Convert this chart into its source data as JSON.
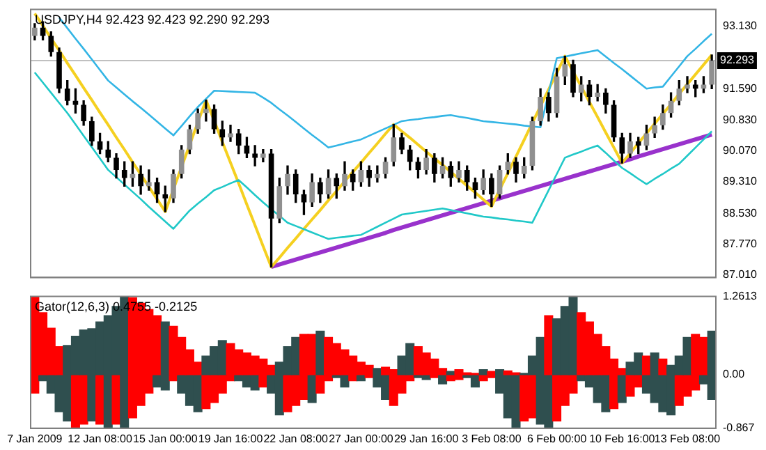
{
  "chart_data": [
    {
      "type": "candlestick",
      "title": "USDJPY,H4 92.423 92.423 92.290 92.293",
      "tick_labels": "y",
      "grid": false,
      "categories": [
        null,
        null,
        null,
        null,
        null,
        null,
        null,
        null,
        null,
        null,
        null,
        null,
        null,
        null,
        null,
        null,
        null,
        null,
        null,
        null,
        null,
        null,
        null,
        null,
        null,
        null,
        null,
        null,
        null,
        null,
        null,
        null,
        null,
        null,
        null,
        null,
        null,
        null,
        null,
        null,
        null,
        null,
        null,
        null,
        null,
        null,
        null,
        null,
        null,
        null,
        null,
        null,
        null,
        null,
        null,
        null,
        null,
        null,
        null,
        null,
        null,
        null,
        null,
        null,
        null,
        null,
        null,
        null,
        null,
        null,
        null,
        null,
        null,
        null,
        null,
        null,
        null,
        null,
        null,
        null,
        null,
        null,
        null,
        null
      ],
      "ohlc": [
        [
          92.9,
          93.2,
          92.8,
          93.1
        ],
        [
          93.1,
          93.25,
          92.8,
          92.9
        ],
        [
          92.9,
          93.0,
          92.4,
          92.5
        ],
        [
          92.5,
          92.6,
          91.5,
          91.6
        ],
        [
          91.6,
          91.8,
          91.2,
          91.3
        ],
        [
          91.3,
          91.6,
          91.0,
          91.2
        ],
        [
          91.2,
          91.3,
          90.7,
          90.8
        ],
        [
          90.8,
          90.9,
          90.2,
          90.3
        ],
        [
          90.3,
          90.5,
          90.0,
          90.1
        ],
        [
          90.1,
          90.3,
          89.8,
          89.9
        ],
        [
          89.9,
          90.0,
          89.4,
          89.6
        ],
        [
          89.6,
          89.8,
          89.2,
          89.4
        ],
        [
          89.4,
          89.8,
          89.2,
          89.5
        ],
        [
          89.5,
          89.7,
          89.0,
          89.2
        ],
        [
          89.2,
          89.6,
          89.1,
          89.3
        ],
        [
          89.3,
          89.4,
          88.8,
          89.0
        ],
        [
          89.0,
          89.2,
          88.57,
          88.9
        ],
        [
          88.9,
          89.6,
          88.8,
          89.5
        ],
        [
          89.5,
          90.2,
          89.4,
          90.1
        ],
        [
          90.1,
          90.7,
          90.0,
          90.6
        ],
        [
          90.6,
          91.1,
          90.5,
          91.0
        ],
        [
          91.0,
          91.32,
          90.8,
          91.1
        ],
        [
          91.1,
          91.2,
          90.5,
          90.6
        ],
        [
          90.6,
          90.8,
          90.2,
          90.4
        ],
        [
          90.4,
          90.7,
          90.3,
          90.5
        ],
        [
          90.5,
          90.6,
          90.0,
          90.2
        ],
        [
          90.2,
          90.4,
          89.9,
          90.0
        ],
        [
          90.0,
          90.2,
          89.7,
          89.9
        ],
        [
          89.9,
          90.1,
          89.8,
          90.0
        ],
        [
          90.0,
          90.1,
          87.21,
          88.4
        ],
        [
          88.4,
          89.4,
          88.3,
          89.2
        ],
        [
          89.2,
          89.7,
          89.0,
          89.5
        ],
        [
          89.5,
          89.6,
          88.8,
          89.0
        ],
        [
          89.0,
          89.1,
          88.5,
          88.8
        ],
        [
          88.8,
          89.5,
          88.7,
          89.3
        ],
        [
          89.3,
          89.4,
          88.8,
          89.0
        ],
        [
          89.0,
          89.6,
          88.9,
          89.4
        ],
        [
          89.4,
          89.5,
          88.9,
          89.2
        ],
        [
          89.2,
          89.8,
          89.1,
          89.5
        ],
        [
          89.5,
          89.6,
          89.1,
          89.3
        ],
        [
          89.3,
          89.8,
          89.2,
          89.6
        ],
        [
          89.6,
          89.7,
          89.2,
          89.4
        ],
        [
          89.4,
          89.7,
          89.3,
          89.5
        ],
        [
          89.5,
          89.9,
          89.4,
          89.8
        ],
        [
          89.8,
          90.72,
          89.7,
          90.4
        ],
        [
          90.4,
          90.5,
          90.0,
          90.1
        ],
        [
          90.1,
          90.2,
          89.6,
          89.8
        ],
        [
          89.8,
          89.9,
          89.4,
          89.6
        ],
        [
          89.6,
          90.1,
          89.5,
          89.9
        ],
        [
          89.9,
          90.0,
          89.3,
          89.5
        ],
        [
          89.5,
          89.9,
          89.4,
          89.7
        ],
        [
          89.7,
          89.8,
          89.2,
          89.4
        ],
        [
          89.4,
          89.8,
          89.3,
          89.6
        ],
        [
          89.6,
          89.7,
          89.1,
          89.3
        ],
        [
          89.3,
          89.4,
          88.9,
          89.1
        ],
        [
          89.1,
          89.6,
          89.0,
          89.4
        ],
        [
          89.4,
          89.5,
          88.7,
          89.0
        ],
        [
          89.0,
          89.7,
          88.9,
          89.6
        ],
        [
          89.6,
          90.0,
          89.5,
          89.8
        ],
        [
          89.8,
          89.9,
          89.3,
          89.5
        ],
        [
          89.5,
          89.9,
          89.4,
          89.7
        ],
        [
          89.7,
          90.9,
          89.6,
          90.8
        ],
        [
          90.8,
          91.6,
          90.7,
          91.4
        ],
        [
          91.4,
          91.5,
          90.8,
          91.0
        ],
        [
          91.0,
          92.1,
          90.9,
          91.9
        ],
        [
          91.9,
          92.4,
          91.7,
          92.2
        ],
        [
          92.2,
          92.3,
          91.4,
          91.5
        ],
        [
          91.5,
          91.9,
          91.3,
          91.7
        ],
        [
          91.7,
          91.8,
          91.2,
          91.4
        ],
        [
          91.4,
          91.7,
          91.3,
          91.5
        ],
        [
          91.5,
          91.6,
          91.0,
          91.2
        ],
        [
          91.2,
          91.3,
          90.3,
          90.4
        ],
        [
          90.4,
          90.5,
          89.77,
          90.0
        ],
        [
          90.0,
          90.5,
          89.9,
          90.3
        ],
        [
          90.3,
          90.4,
          90.0,
          90.2
        ],
        [
          90.2,
          90.7,
          90.1,
          90.5
        ],
        [
          90.5,
          90.9,
          90.4,
          90.7
        ],
        [
          90.7,
          91.2,
          90.6,
          91.0
        ],
        [
          91.0,
          91.5,
          90.9,
          91.3
        ],
        [
          91.3,
          91.8,
          91.2,
          91.6
        ],
        [
          91.6,
          91.9,
          91.5,
          91.7
        ],
        [
          91.7,
          91.8,
          91.4,
          91.6
        ],
        [
          91.6,
          91.9,
          91.5,
          91.7
        ],
        [
          91.7,
          92.43,
          91.6,
          92.293
        ]
      ],
      "colors": [
        "#909090",
        "#000000",
        "#000000",
        "#000000",
        "#000000",
        "#000000",
        "#000000",
        "#000000",
        "#000000",
        "#000000",
        "#000000",
        "#000000",
        "#909090",
        "#000000",
        "#909090",
        "#000000",
        "#000000",
        "#909090",
        "#909090",
        "#909090",
        "#909090",
        "#909090",
        "#000000",
        "#000000",
        "#909090",
        "#000000",
        "#000000",
        "#000000",
        "#909090",
        "#000000",
        "#909090",
        "#909090",
        "#000000",
        "#000000",
        "#909090",
        "#000000",
        "#909090",
        "#000000",
        "#909090",
        "#000000",
        "#909090",
        "#000000",
        "#909090",
        "#909090",
        "#909090",
        "#000000",
        "#000000",
        "#000000",
        "#909090",
        "#000000",
        "#909090",
        "#000000",
        "#909090",
        "#000000",
        "#000000",
        "#909090",
        "#000000",
        "#909090",
        "#909090",
        "#000000",
        "#909090",
        "#909090",
        "#909090",
        "#000000",
        "#909090",
        "#909090",
        "#000000",
        "#909090",
        "#000000",
        "#909090",
        "#000000",
        "#000000",
        "#000000",
        "#909090",
        "#000000",
        "#909090",
        "#909090",
        "#909090",
        "#909090",
        "#909090",
        "#909090",
        "#000000",
        "#909090",
        "#909090"
      ],
      "series": [
        {
          "type": "line",
          "color": "#33b5e5",
          "values": [
            null,
            null,
            null,
            93.35,
            93.09,
            92.83,
            92.58,
            92.32,
            92.06,
            91.8,
            91.63,
            91.46,
            91.29,
            91.13,
            90.96,
            90.79,
            90.62,
            90.45,
            90.68,
            90.92,
            91.15,
            91.35,
            91.55,
            91.54,
            91.53,
            91.52,
            91.51,
            91.5,
            91.38,
            91.25,
            91.09,
            90.94,
            90.78,
            90.62,
            90.46,
            90.31,
            90.15,
            90.2,
            90.25,
            90.3,
            90.35,
            90.44,
            90.53,
            90.62,
            90.71,
            90.8,
            90.83,
            90.85,
            90.88,
            90.9,
            90.93,
            90.95,
            90.91,
            90.88,
            90.84,
            90.8,
            90.78,
            90.76,
            90.74,
            90.72,
            90.69,
            90.67,
            90.65,
            91.5,
            92.35,
            92.39,
            92.43,
            92.47,
            92.51,
            92.55,
            92.39,
            92.23,
            92.08,
            91.92,
            91.76,
            91.6,
            91.63,
            91.65,
            91.9,
            92.15,
            92.4,
            92.58,
            92.77,
            92.95
          ]
        },
        {
          "type": "line",
          "color": "#20c8c8",
          "values": [
            92.0,
            91.75,
            91.5,
            91.25,
            91.0,
            90.72,
            90.44,
            90.16,
            89.88,
            89.6,
            89.42,
            89.24,
            89.06,
            88.88,
            88.69,
            88.51,
            88.33,
            88.15,
            88.38,
            88.6,
            88.77,
            88.93,
            89.1,
            89.18,
            89.27,
            89.35,
            89.17,
            88.98,
            88.8,
            88.63,
            88.47,
            88.3,
            88.22,
            88.14,
            88.06,
            87.98,
            87.9,
            87.93,
            87.95,
            87.98,
            88.0,
            88.1,
            88.2,
            88.3,
            88.4,
            88.5,
            88.53,
            88.56,
            88.59,
            88.62,
            88.65,
            88.61,
            88.57,
            88.53,
            88.49,
            88.45,
            88.43,
            88.4,
            88.38,
            88.35,
            88.33,
            88.3,
            88.7,
            89.1,
            89.5,
            89.9,
            89.98,
            90.05,
            90.13,
            90.2,
            90.02,
            89.83,
            89.65,
            89.52,
            89.38,
            89.25,
            89.38,
            89.5,
            89.63,
            89.75,
            89.95,
            90.15,
            90.35,
            90.55
          ]
        },
        {
          "type": "line",
          "color": "#f5d020",
          "values": [
            93.45,
            93.15,
            92.84,
            92.54,
            92.23,
            91.93,
            91.62,
            91.32,
            91.01,
            90.71,
            90.4,
            90.1,
            89.79,
            89.49,
            89.18,
            88.88,
            88.57,
            89.12,
            89.67,
            90.22,
            90.77,
            91.32,
            90.81,
            90.29,
            89.78,
            89.27,
            88.75,
            88.24,
            87.72,
            87.21,
            87.44,
            87.68,
            87.91,
            88.15,
            88.38,
            88.61,
            88.85,
            89.08,
            89.32,
            89.55,
            89.78,
            90.02,
            90.25,
            90.49,
            90.72,
            90.55,
            90.39,
            90.22,
            90.05,
            89.88,
            89.72,
            89.55,
            89.38,
            89.21,
            89.04,
            88.87,
            88.7,
            89.11,
            89.52,
            89.93,
            90.34,
            90.76,
            91.17,
            91.58,
            91.99,
            92.4,
            92.02,
            91.65,
            91.27,
            90.9,
            90.52,
            90.15,
            89.77,
            90.01,
            90.26,
            90.5,
            90.74,
            90.98,
            91.22,
            91.47,
            91.71,
            91.95,
            92.19,
            92.43
          ]
        },
        {
          "type": "line",
          "color": "#9932cc",
          "values": [
            null,
            null,
            null,
            null,
            null,
            null,
            null,
            null,
            null,
            null,
            null,
            null,
            null,
            null,
            null,
            null,
            null,
            null,
            null,
            null,
            null,
            null,
            null,
            null,
            null,
            null,
            null,
            null,
            null,
            87.21,
            87.27,
            87.33,
            87.39,
            87.45,
            87.51,
            87.57,
            87.63,
            87.69,
            87.75,
            87.81,
            87.87,
            87.93,
            87.99,
            88.05,
            88.12,
            88.18,
            88.24,
            88.3,
            88.36,
            88.42,
            88.48,
            88.54,
            88.6,
            88.66,
            88.72,
            88.78,
            88.84,
            88.9,
            88.96,
            89.02,
            89.08,
            89.14,
            89.2,
            89.26,
            89.32,
            89.38,
            89.44,
            89.5,
            89.56,
            89.62,
            89.68,
            89.74,
            89.8,
            89.86,
            89.93,
            89.99,
            90.05,
            90.11,
            90.17,
            90.23,
            90.29,
            90.35,
            90.41,
            90.47
          ]
        }
      ],
      "ref_lines": [
        {
          "axis": "y",
          "value": 92.293,
          "label": "92.293",
          "color": "#c0c0c0"
        }
      ],
      "ylim": [
        86.95,
        93.55
      ],
      "yticks": [
        {
          "value": 93.13,
          "label": "93.130"
        },
        {
          "value": 91.59,
          "label": "91.590"
        },
        {
          "value": 90.83,
          "label": "90.830"
        },
        {
          "value": 90.07,
          "label": "90.070"
        },
        {
          "value": 89.31,
          "label": "89.310"
        },
        {
          "value": 88.53,
          "label": "88.530"
        },
        {
          "value": 87.77,
          "label": "87.770"
        },
        {
          "value": 87.01,
          "label": "87.010"
        }
      ]
    },
    {
      "type": "bar",
      "title": "Gator(12,6,3) 0.4755 -0.2125",
      "grid": false,
      "stacked": true,
      "categories": [
        "7 Jan 2009",
        null,
        null,
        null,
        null,
        null,
        null,
        null,
        "12 Jan 08:00",
        null,
        null,
        null,
        null,
        null,
        null,
        null,
        "15 Jan 00:00",
        null,
        null,
        null,
        null,
        null,
        null,
        null,
        "19 Jan 16:00",
        null,
        null,
        null,
        null,
        null,
        null,
        null,
        "22 Jan 08:00",
        null,
        null,
        null,
        null,
        null,
        null,
        null,
        "27 Jan 00:00",
        null,
        null,
        null,
        null,
        null,
        null,
        null,
        "29 Jan 16:00",
        null,
        null,
        null,
        null,
        null,
        null,
        null,
        "3 Feb 08:00",
        null,
        null,
        null,
        null,
        null,
        null,
        null,
        "6 Feb 00:00",
        null,
        null,
        null,
        null,
        null,
        null,
        null,
        "10 Feb 16:00",
        null,
        null,
        null,
        null,
        null,
        null,
        null,
        "13 Feb 08:00",
        null,
        null,
        null
      ],
      "series": [
        {
          "values": [
            1.25,
            1.0,
            0.75,
            0.45,
            0.47,
            0.62,
            0.72,
            0.74,
            0.85,
            0.95,
            1.1,
            1.26,
            1.24,
            1.15,
            1.05,
            0.95,
            0.85,
            0.78,
            0.6,
            0.4,
            0.2,
            0.3,
            0.45,
            0.55,
            0.5,
            0.4,
            0.35,
            0.3,
            0.25,
            0.15,
            0.2,
            0.45,
            0.6,
            0.65,
            0.65,
            0.7,
            0.6,
            0.5,
            0.4,
            0.3,
            0.2,
            0.15,
            0.1,
            0.12,
            0.08,
            0.3,
            0.5,
            0.45,
            0.35,
            0.25,
            0.1,
            0.05,
            0.08,
            0.03,
            0.02,
            0.08,
            0.05,
            0.08,
            0.06,
            0.03,
            0.02,
            0.3,
            0.6,
            0.95,
            0.9,
            1.1,
            1.26,
            1.0,
            0.85,
            0.65,
            0.45,
            0.25,
            0.1,
            0.2,
            0.35,
            0.3,
            0.35,
            0.25,
            0.15,
            0.3,
            0.6,
            0.65,
            0.6,
            0.7
          ],
          "colors": [
            "#ff0000",
            "#ff0000",
            "#ff0000",
            "#ff0000",
            "#2f4f4f",
            "#2f4f4f",
            "#2f4f4f",
            "#2f4f4f",
            "#2f4f4f",
            "#2f4f4f",
            "#2f4f4f",
            "#2f4f4f",
            "#ff0000",
            "#ff0000",
            "#ff0000",
            "#ff0000",
            "#2f4f4f",
            "#ff0000",
            "#ff0000",
            "#ff0000",
            "#ff0000",
            "#2f4f4f",
            "#2f4f4f",
            "#2f4f4f",
            "#ff0000",
            "#ff0000",
            "#ff0000",
            "#ff0000",
            "#ff0000",
            "#ff0000",
            "#2f4f4f",
            "#2f4f4f",
            "#2f4f4f",
            "#ff0000",
            "#ff0000",
            "#2f4f4f",
            "#ff0000",
            "#ff0000",
            "#ff0000",
            "#ff0000",
            "#ff0000",
            "#ff0000",
            "#2f4f4f",
            "#ff0000",
            "#ff0000",
            "#2f4f4f",
            "#2f4f4f",
            "#ff0000",
            "#ff0000",
            "#ff0000",
            "#ff0000",
            "#2f4f4f",
            "#ff0000",
            "#ff0000",
            "#ff0000",
            "#2f4f4f",
            "#ff0000",
            "#2f4f4f",
            "#ff0000",
            "#ff0000",
            "#2f4f4f",
            "#2f4f4f",
            "#2f4f4f",
            "#ff0000",
            "#2f4f4f",
            "#2f4f4f",
            "#2f4f4f",
            "#ff0000",
            "#ff0000",
            "#ff0000",
            "#ff0000",
            "#ff0000",
            "#ff0000",
            "#2f4f4f",
            "#2f4f4f",
            "#ff0000",
            "#2f4f4f",
            "#ff0000",
            "#2f4f4f",
            "#2f4f4f",
            "#2f4f4f",
            "#ff0000",
            "#ff0000",
            "#2f4f4f"
          ]
        },
        {
          "values": [
            -0.3,
            -0.1,
            -0.3,
            -0.6,
            -0.75,
            -0.85,
            -0.8,
            -0.75,
            -0.8,
            -0.85,
            -0.8,
            -0.85,
            -0.7,
            -0.5,
            -0.3,
            -0.2,
            -0.25,
            -0.1,
            -0.3,
            -0.5,
            -0.6,
            -0.55,
            -0.45,
            -0.3,
            -0.1,
            -0.1,
            -0.2,
            -0.25,
            -0.2,
            -0.3,
            -0.65,
            -0.6,
            -0.5,
            -0.4,
            -0.45,
            -0.3,
            -0.1,
            -0.05,
            -0.2,
            -0.1,
            -0.1,
            -0.05,
            -0.2,
            -0.4,
            -0.5,
            -0.3,
            -0.1,
            -0.05,
            -0.08,
            -0.05,
            -0.15,
            -0.1,
            -0.08,
            -0.05,
            -0.2,
            -0.1,
            -0.05,
            -0.3,
            -0.7,
            -0.85,
            -0.75,
            -0.7,
            -0.8,
            -0.85,
            -0.75,
            -0.5,
            -0.3,
            -0.1,
            -0.2,
            -0.45,
            -0.6,
            -0.55,
            -0.45,
            -0.35,
            -0.2,
            -0.3,
            -0.45,
            -0.6,
            -0.65,
            -0.5,
            -0.35,
            -0.25,
            -0.15,
            -0.4
          ],
          "colors": [
            "#ff0000",
            "#2f4f4f",
            "#2f4f4f",
            "#2f4f4f",
            "#2f4f4f",
            "#ff0000",
            "#ff0000",
            "#2f4f4f",
            "#ff0000",
            "#2f4f4f",
            "#ff0000",
            "#2f4f4f",
            "#ff0000",
            "#ff0000",
            "#ff0000",
            "#2f4f4f",
            "#2f4f4f",
            "#ff0000",
            "#2f4f4f",
            "#2f4f4f",
            "#2f4f4f",
            "#ff0000",
            "#ff0000",
            "#ff0000",
            "#ff0000",
            "#2f4f4f",
            "#2f4f4f",
            "#2f4f4f",
            "#ff0000",
            "#2f4f4f",
            "#2f4f4f",
            "#ff0000",
            "#ff0000",
            "#ff0000",
            "#2f4f4f",
            "#ff0000",
            "#ff0000",
            "#2f4f4f",
            "#2f4f4f",
            "#ff0000",
            "#2f4f4f",
            "#ff0000",
            "#2f4f4f",
            "#2f4f4f",
            "#ff0000",
            "#ff0000",
            "#ff0000",
            "#2f4f4f",
            "#2f4f4f",
            "#ff0000",
            "#2f4f4f",
            "#ff0000",
            "#ff0000",
            "#2f4f4f",
            "#2f4f4f",
            "#ff0000",
            "#ff0000",
            "#2f4f4f",
            "#2f4f4f",
            "#2f4f4f",
            "#ff0000",
            "#ff0000",
            "#2f4f4f",
            "#2f4f4f",
            "#ff0000",
            "#ff0000",
            "#ff0000",
            "#2f4f4f",
            "#2f4f4f",
            "#2f4f4f",
            "#2f4f4f",
            "#ff0000",
            "#2f4f4f",
            "#ff0000",
            "#ff0000",
            "#2f4f4f",
            "#2f4f4f",
            "#2f4f4f",
            "#2f4f4f",
            "#ff0000",
            "#ff0000",
            "#ff0000",
            "#2f4f4f",
            "#2f4f4f"
          ]
        }
      ],
      "ylim": [
        -0.867,
        1.2613
      ],
      "yticks": [
        1.2613,
        {
          "value": 0,
          "label": "0.00"
        },
        -0.867
      ]
    }
  ]
}
